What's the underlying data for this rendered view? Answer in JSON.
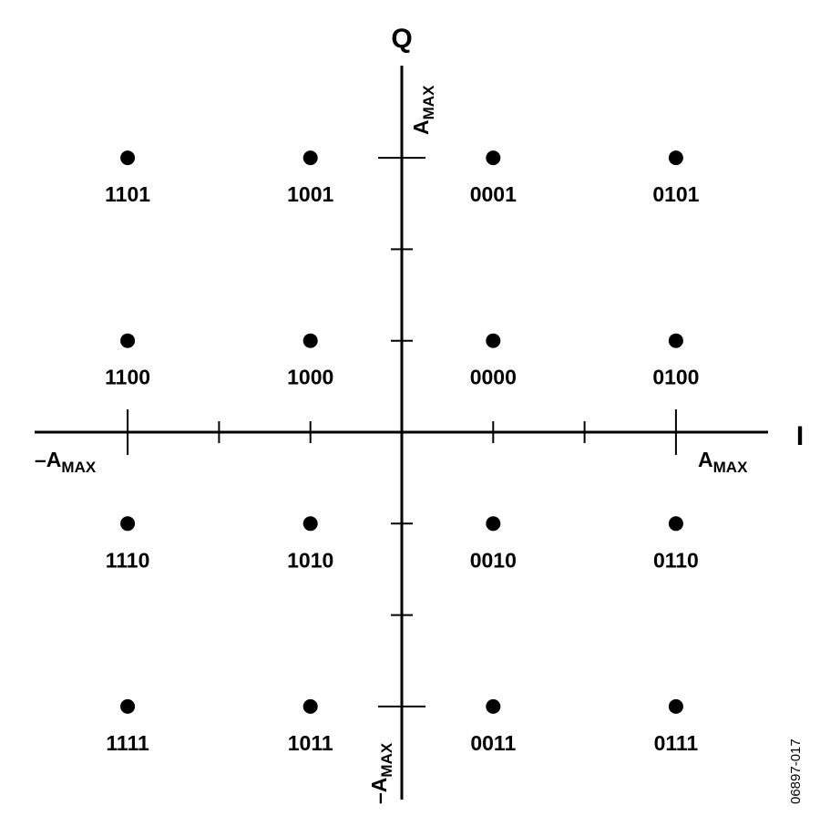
{
  "chart_data": {
    "type": "scatter",
    "title": "",
    "xlabel": "I",
    "ylabel": "Q",
    "x_max_label": {
      "main": "A",
      "sub": "MAX"
    },
    "x_min_label": {
      "main": "–A",
      "sub": "MAX"
    },
    "y_max_label": {
      "main": "A",
      "sub": "MAX"
    },
    "y_min_label": {
      "main": "–A",
      "sub": "MAX"
    },
    "amax": 3,
    "xlim": [
      -4,
      4
    ],
    "ylim": [
      -4,
      4
    ],
    "ticks": [
      -3,
      -2,
      -1,
      1,
      2,
      3
    ],
    "grid": false,
    "points": [
      {
        "i": -3,
        "q": 3,
        "label": "1101"
      },
      {
        "i": -1,
        "q": 3,
        "label": "1001"
      },
      {
        "i": 1,
        "q": 3,
        "label": "0001"
      },
      {
        "i": 3,
        "q": 3,
        "label": "0101"
      },
      {
        "i": -3,
        "q": 1,
        "label": "1100"
      },
      {
        "i": -1,
        "q": 1,
        "label": "1000"
      },
      {
        "i": 1,
        "q": 1,
        "label": "0000"
      },
      {
        "i": 3,
        "q": 1,
        "label": "0100"
      },
      {
        "i": -3,
        "q": -1,
        "label": "1110"
      },
      {
        "i": -1,
        "q": -1,
        "label": "1010"
      },
      {
        "i": 1,
        "q": -1,
        "label": "0010"
      },
      {
        "i": 3,
        "q": -1,
        "label": "0110"
      },
      {
        "i": -3,
        "q": -3,
        "label": "1111"
      },
      {
        "i": -1,
        "q": -3,
        "label": "1011"
      },
      {
        "i": 1,
        "q": -3,
        "label": "0011"
      },
      {
        "i": 3,
        "q": -3,
        "label": "0111"
      }
    ],
    "color": "#000000"
  },
  "figure_id": "06897-017"
}
